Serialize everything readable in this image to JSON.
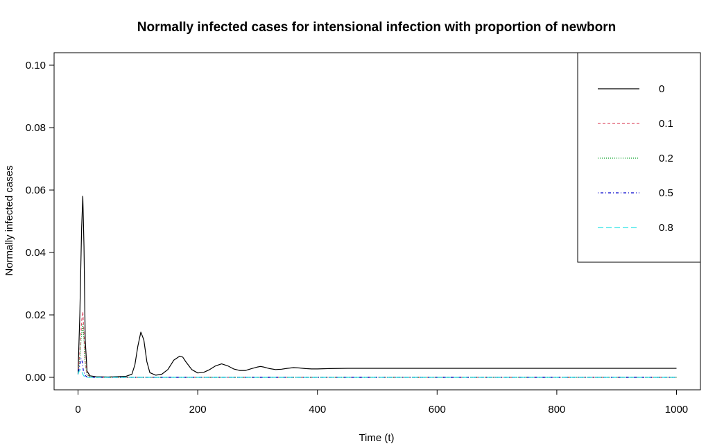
{
  "chart_data": {
    "type": "line",
    "title": "Normally infected cases for intensional infection with proportion of newborn",
    "xlabel": "Time (t)",
    "ylabel": "Normally infected cases",
    "xlim": [
      0,
      1000
    ],
    "ylim": [
      0,
      0.1
    ],
    "xticks": [
      "0",
      "200",
      "400",
      "600",
      "800",
      "1000"
    ],
    "yticks": [
      "0.00",
      "0.02",
      "0.04",
      "0.06",
      "0.08",
      "0.10"
    ],
    "legend_position": "top-right",
    "grid": false,
    "series": [
      {
        "name": "0",
        "color": "#000000",
        "dash": "solid",
        "x": [
          0,
          3,
          6,
          8,
          10,
          12,
          15,
          20,
          30,
          50,
          80,
          90,
          95,
          100,
          105,
          110,
          115,
          120,
          130,
          140,
          150,
          160,
          170,
          175,
          180,
          190,
          200,
          210,
          220,
          230,
          240,
          250,
          260,
          270,
          280,
          290,
          300,
          305,
          310,
          320,
          330,
          340,
          350,
          360,
          370,
          380,
          390,
          400,
          420,
          450,
          500,
          600,
          700,
          800,
          900,
          1000
        ],
        "y": [
          0.001,
          0.02,
          0.048,
          0.058,
          0.042,
          0.012,
          0.002,
          0.0005,
          0.0002,
          0.0001,
          0.0003,
          0.001,
          0.004,
          0.01,
          0.0145,
          0.012,
          0.005,
          0.0015,
          0.0007,
          0.001,
          0.0025,
          0.0055,
          0.0068,
          0.0065,
          0.005,
          0.0025,
          0.0014,
          0.0016,
          0.0025,
          0.0037,
          0.0043,
          0.0037,
          0.0027,
          0.0022,
          0.0022,
          0.0028,
          0.0033,
          0.0035,
          0.0033,
          0.0028,
          0.0025,
          0.0026,
          0.0029,
          0.0031,
          0.003,
          0.0028,
          0.0027,
          0.0027,
          0.0028,
          0.0029,
          0.0029,
          0.0029,
          0.0029,
          0.0029,
          0.0029,
          0.0029
        ]
      },
      {
        "name": "0.1",
        "color": "#DF536B",
        "dash": "dashed",
        "x": [
          0,
          3,
          6,
          8,
          10,
          12,
          15,
          20,
          30,
          100,
          500,
          1000
        ],
        "y": [
          0.001,
          0.008,
          0.018,
          0.021,
          0.014,
          0.005,
          0.001,
          0.0002,
          0,
          0,
          0,
          0
        ]
      },
      {
        "name": "0.2",
        "color": "#00A020",
        "dash": "dotted",
        "x": [
          0,
          3,
          6,
          8,
          10,
          12,
          15,
          20,
          30,
          100,
          500,
          1000
        ],
        "y": [
          0.001,
          0.006,
          0.014,
          0.017,
          0.011,
          0.004,
          0.0008,
          0.0001,
          0,
          0,
          0,
          0
        ]
      },
      {
        "name": "0.5",
        "color": "#0000CC",
        "dash": "dotdash",
        "x": [
          0,
          3,
          5,
          7,
          9,
          12,
          15,
          20,
          100,
          500,
          1000
        ],
        "y": [
          0.001,
          0.004,
          0.006,
          0.005,
          0.002,
          0.0006,
          0.0001,
          0,
          0,
          0,
          0
        ]
      },
      {
        "name": "0.8",
        "color": "#28E2E5",
        "dash": "longdash",
        "x": [
          0,
          2,
          4,
          6,
          8,
          10,
          12,
          15,
          100,
          500,
          1000
        ],
        "y": [
          0.001,
          0.002,
          0.0025,
          0.002,
          0.001,
          0.0004,
          0.0001,
          0,
          0,
          0,
          0
        ]
      }
    ]
  }
}
